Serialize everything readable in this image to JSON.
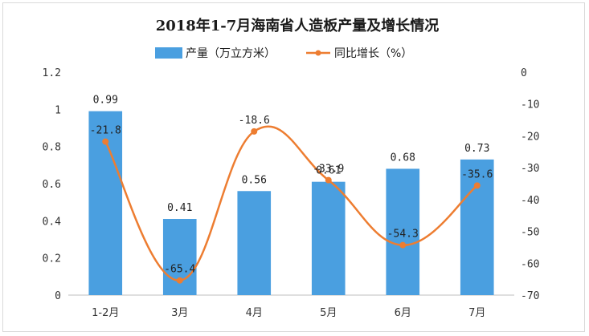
{
  "chart_data": {
    "type": "bar",
    "title": "2018年1-7月海南省人造板产量及增长情况",
    "categories": [
      "1-2月",
      "3月",
      "4月",
      "5月",
      "6月",
      "7月"
    ],
    "series": [
      {
        "name": "产量（万立方米）",
        "type": "bar",
        "axis": "left",
        "color": "#4a9fe0",
        "values": [
          0.99,
          0.41,
          0.56,
          0.61,
          0.68,
          0.73
        ],
        "labels": [
          "0.99",
          "0.41",
          "0.56",
          "0.61",
          "0.68",
          "0.73"
        ]
      },
      {
        "name": "同比增长（%）",
        "type": "line",
        "axis": "right",
        "color": "#ed7d31",
        "values": [
          -21.8,
          -65.4,
          -18.6,
          -33.9,
          -54.3,
          -35.6
        ],
        "labels": [
          "-21.8",
          "-65.4",
          "-18.6",
          "-33.9",
          "-54.3",
          "-35.6"
        ]
      }
    ],
    "y_left": {
      "ylim": [
        0,
        1.2
      ],
      "ticks": [
        "0",
        "0.2",
        "0.4",
        "0.6",
        "0.8",
        "1",
        "1.2"
      ]
    },
    "y_right": {
      "ylim": [
        -70,
        0
      ],
      "ticks": [
        "-70",
        "-60",
        "-50",
        "-40",
        "-30",
        "-20",
        "-10",
        "0"
      ]
    },
    "legend_position": "top",
    "grid": false
  }
}
